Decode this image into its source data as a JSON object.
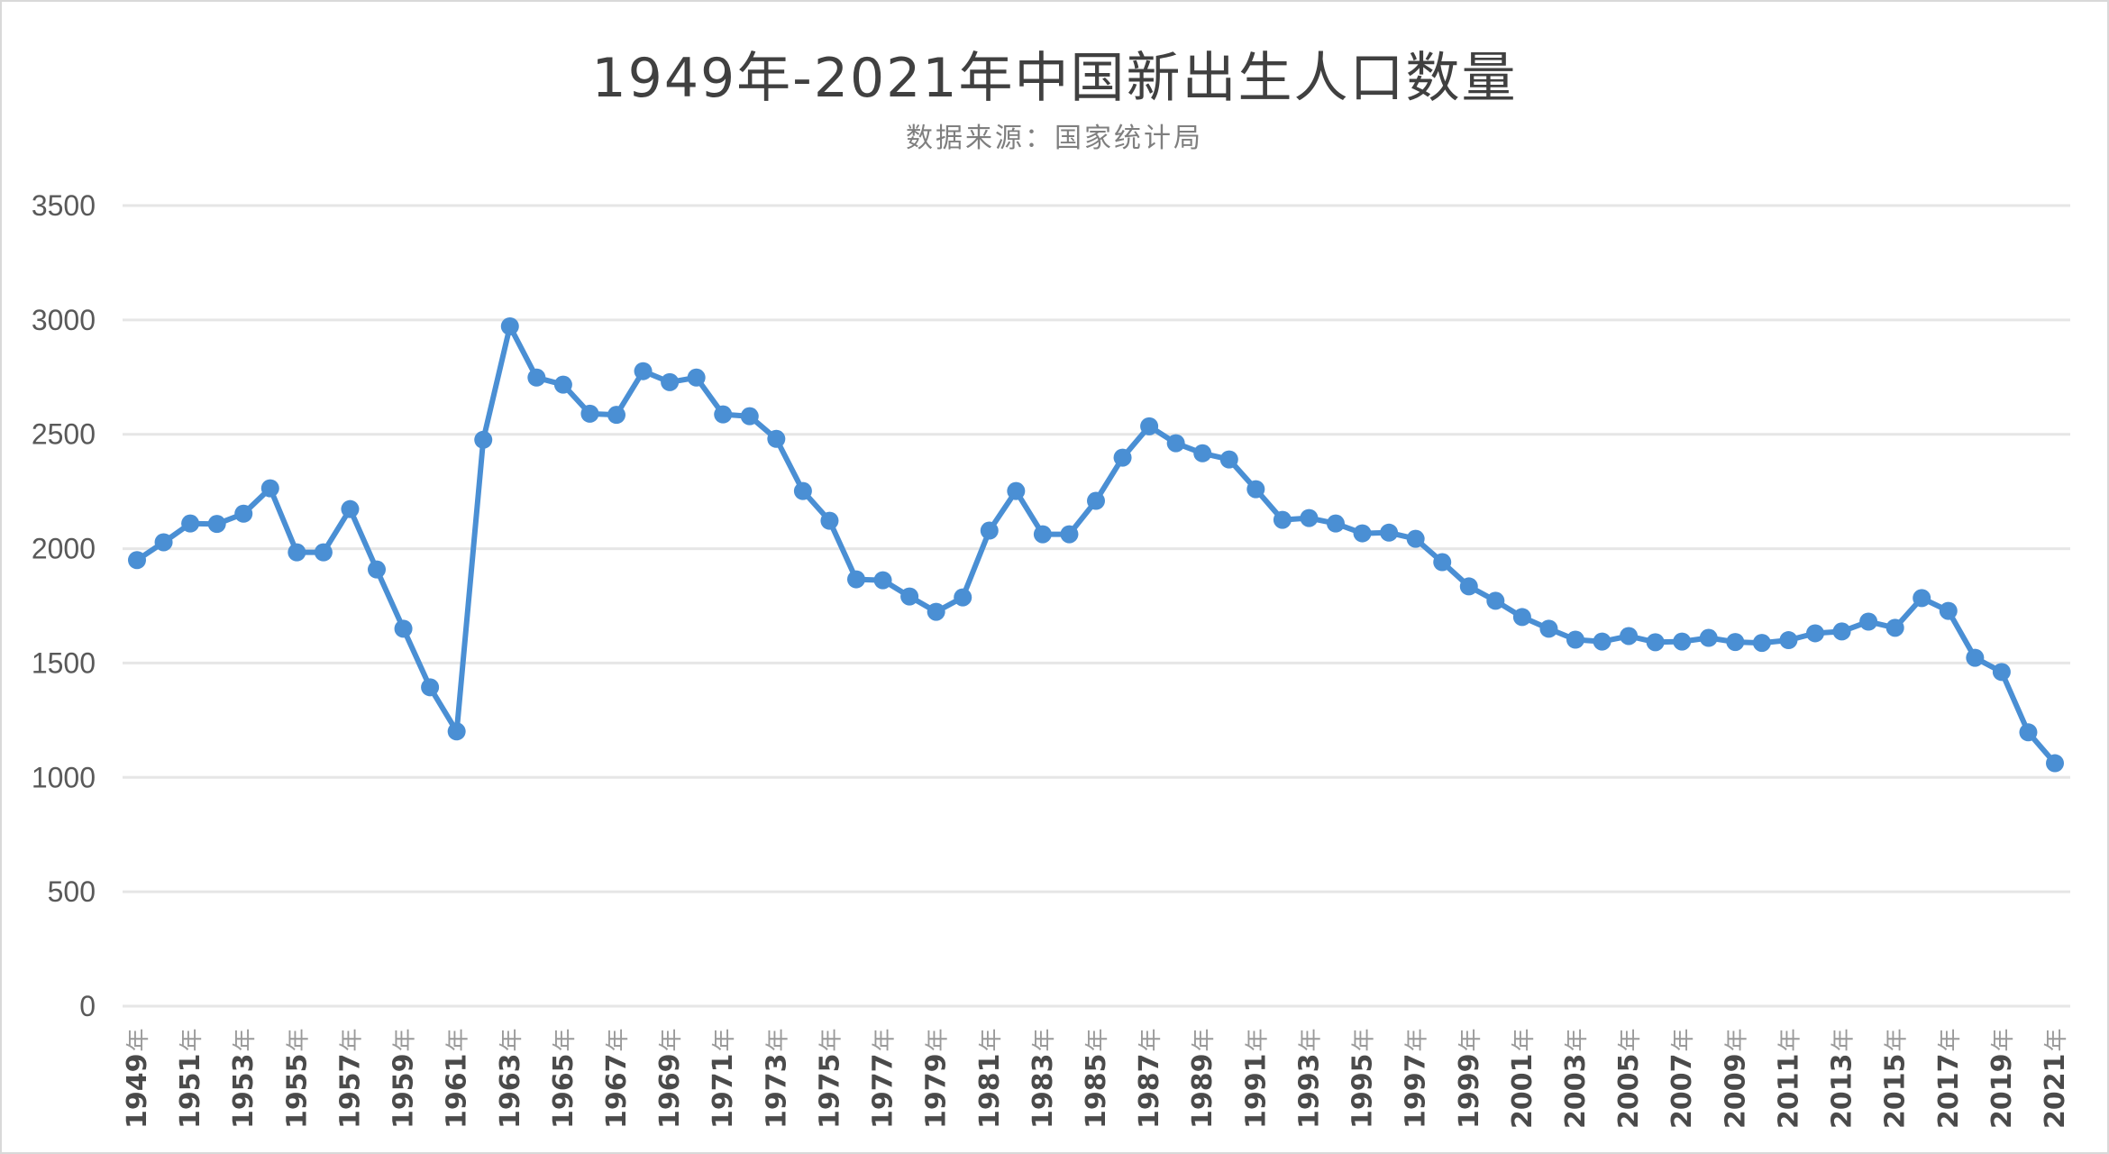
{
  "chart": {
    "title": "1949年-2021年中国新出生人口数量",
    "subtitle": "数据来源：国家统计局"
  },
  "colors": {
    "series": "#4a8fd4",
    "grid": "#e6e6e6",
    "frame": "#d9d9d9",
    "text": "#595959"
  },
  "chart_data": {
    "type": "line",
    "title": "1949年-2021年中国新出生人口数量",
    "subtitle": "数据来源：国家统计局",
    "xlabel": "",
    "ylabel": "",
    "ylim": [
      0,
      3500
    ],
    "yticks": [
      0,
      500,
      1000,
      1500,
      2000,
      2500,
      3000,
      3500
    ],
    "grid": true,
    "legend": "none",
    "marker": "circle",
    "x_label_suffix": "年",
    "x_label_step": 2,
    "x": [
      1949,
      1950,
      1951,
      1952,
      1953,
      1954,
      1955,
      1956,
      1957,
      1958,
      1959,
      1960,
      1961,
      1962,
      1963,
      1964,
      1965,
      1966,
      1967,
      1968,
      1969,
      1970,
      1971,
      1972,
      1973,
      1974,
      1975,
      1976,
      1977,
      1978,
      1979,
      1980,
      1981,
      1982,
      1983,
      1984,
      1985,
      1986,
      1987,
      1988,
      1989,
      1990,
      1991,
      1992,
      1993,
      1994,
      1995,
      1996,
      1997,
      1998,
      1999,
      2000,
      2001,
      2002,
      2003,
      2004,
      2005,
      2006,
      2007,
      2008,
      2009,
      2010,
      2011,
      2012,
      2013,
      2014,
      2015,
      2016,
      2017,
      2018,
      2019,
      2020,
      2021
    ],
    "series": [
      {
        "name": "新出生人口数量",
        "values": [
          1950,
          2028,
          2110,
          2108,
          2153,
          2264,
          1984,
          1984,
          2173,
          1909,
          1650,
          1394,
          1201,
          2476,
          2972,
          2748,
          2717,
          2590,
          2585,
          2776,
          2728,
          2748,
          2587,
          2579,
          2480,
          2252,
          2122,
          1866,
          1862,
          1791,
          1724,
          1787,
          2079,
          2252,
          2063,
          2063,
          2209,
          2398,
          2535,
          2461,
          2417,
          2390,
          2260,
          2126,
          2134,
          2110,
          2067,
          2070,
          2043,
          1941,
          1835,
          1772,
          1701,
          1650,
          1602,
          1594,
          1618,
          1591,
          1594,
          1610,
          1592,
          1588,
          1600,
          1630,
          1638,
          1681,
          1654,
          1784,
          1728,
          1523,
          1461,
          1197,
          1062
        ]
      }
    ]
  }
}
